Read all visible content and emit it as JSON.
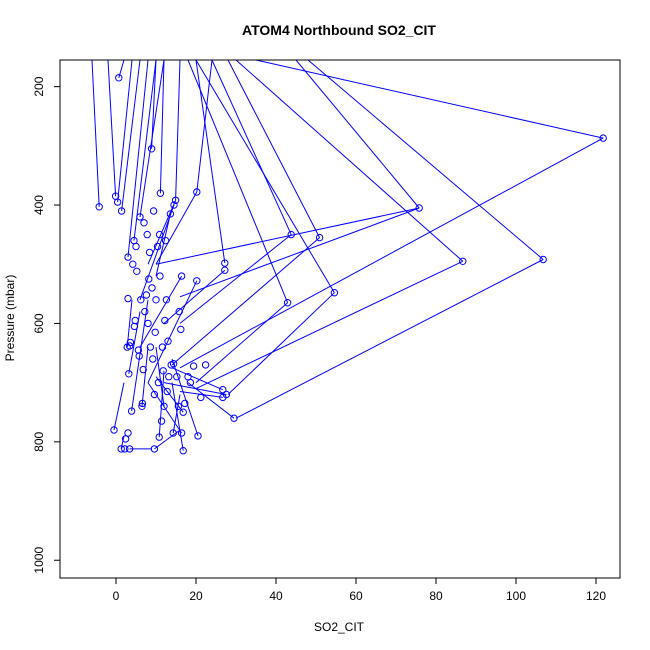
{
  "chart_data": {
    "type": "line",
    "title": "ATOM4 Northbound SO2_CIT",
    "xlabel": "SO2_CIT",
    "ylabel": "Pressure (mbar)",
    "xlim": [
      -14,
      126
    ],
    "ylim": [
      1030,
      155
    ],
    "y_reversed": true,
    "x_ticks": [
      0,
      20,
      40,
      60,
      80,
      100,
      120
    ],
    "y_ticks": [
      200,
      400,
      600,
      800,
      1000
    ],
    "grid": false,
    "series": [
      {
        "color": "#0000ff",
        "marker": "open-circle",
        "segments": [
          [
            [
              121.8,
              287
            ],
            [
              35,
              155
            ]
          ],
          [
            [
              121.8,
              287
            ],
            [
              16,
              675
            ]
          ],
          [
            [
              106.8,
              492
            ],
            [
              30,
              760
            ]
          ],
          [
            [
              106.8,
              492
            ],
            [
              48,
              155
            ]
          ],
          [
            [
              86.7,
              495
            ],
            [
              20,
              710
            ]
          ],
          [
            [
              86.7,
              495
            ],
            [
              30,
              155
            ]
          ],
          [
            [
              75.8,
              405
            ],
            [
              16,
              555
            ]
          ],
          [
            [
              75.8,
              405
            ],
            [
              45,
              155
            ]
          ],
          [
            [
              75.8,
              405
            ],
            [
              10,
              500
            ]
          ],
          [
            [
              54.6,
              548
            ],
            [
              28,
              720
            ]
          ],
          [
            [
              54.6,
              548
            ],
            [
              20,
              155
            ]
          ],
          [
            [
              50.9,
              455
            ],
            [
              14,
              670
            ]
          ],
          [
            [
              50.9,
              455
            ],
            [
              28,
              155
            ]
          ],
          [
            [
              43.8,
              450
            ],
            [
              16,
              600
            ]
          ],
          [
            [
              43.8,
              450
            ],
            [
              24,
              155
            ]
          ],
          [
            [
              42.9,
              565
            ],
            [
              20,
              700
            ]
          ],
          [
            [
              42.9,
              565
            ],
            [
              18,
              155
            ]
          ],
          [
            [
              29.5,
              760
            ],
            [
              18,
              700
            ]
          ],
          [
            [
              27.6,
              720
            ],
            [
              12,
              700
            ]
          ],
          [
            [
              26.7,
              725
            ],
            [
              16,
              715
            ]
          ],
          [
            [
              26.7,
              712
            ],
            [
              14,
              675
            ]
          ],
          [
            [
              27.2,
              498
            ],
            [
              20,
              155
            ]
          ],
          [
            [
              27.2,
              510
            ],
            [
              12,
              600
            ]
          ],
          [
            [
              20.5,
              790
            ],
            [
              14,
              660
            ]
          ],
          [
            [
              20.2,
              528
            ],
            [
              8,
              700
            ]
          ],
          [
            [
              20.2,
              378
            ],
            [
              10,
              500
            ]
          ],
          [
            [
              20.2,
              378
            ],
            [
              24,
              155
            ]
          ],
          [
            [
              16.8,
              815
            ],
            [
              14,
              700
            ]
          ],
          [
            [
              16.4,
              520
            ],
            [
              6,
              640
            ]
          ],
          [
            [
              16.4,
              785
            ],
            [
              8,
              700
            ]
          ],
          [
            [
              16.8,
              750
            ],
            [
              10,
              690
            ]
          ],
          [
            [
              14.9,
              392
            ],
            [
              8,
              500
            ]
          ],
          [
            [
              14.9,
              392
            ],
            [
              16,
              155
            ]
          ],
          [
            [
              14.5,
              400
            ],
            [
              6,
              560
            ]
          ],
          [
            [
              13.6,
              415
            ],
            [
              10,
              520
            ]
          ],
          [
            [
              -4.2,
              403
            ],
            [
              -6,
              155
            ]
          ],
          [
            [
              -0.1,
              385
            ],
            [
              -2,
              155
            ]
          ],
          [
            [
              0.4,
              395
            ],
            [
              4,
              155
            ]
          ],
          [
            [
              0.7,
              185
            ],
            [
              2,
              155
            ]
          ],
          [
            [
              1.4,
              410
            ],
            [
              6,
              155
            ]
          ],
          [
            [
              3.0,
              488
            ],
            [
              8,
              155
            ]
          ],
          [
            [
              4.5,
              460
            ],
            [
              10,
              155
            ]
          ],
          [
            [
              6.0,
              420
            ],
            [
              12,
              155
            ]
          ],
          [
            [
              8.9,
              305
            ],
            [
              10,
              155
            ]
          ],
          [
            [
              11.1,
              380
            ],
            [
              12,
              155
            ]
          ],
          [
            [
              3.9,
              748
            ],
            [
              8,
              560
            ]
          ],
          [
            [
              3.2,
              685
            ],
            [
              6,
              580
            ]
          ],
          [
            [
              2.8,
              640
            ],
            [
              4,
              560
            ]
          ],
          [
            [
              6.5,
              740
            ],
            [
              8,
              640
            ]
          ],
          [
            [
              10.8,
              792
            ],
            [
              12,
              680
            ]
          ],
          [
            [
              1.3,
              812
            ],
            [
              2,
              790
            ]
          ],
          [
            [
              -0.5,
              780
            ],
            [
              2,
              700
            ]
          ],
          [
            [
              3.4,
              812
            ],
            [
              9,
              812
            ]
          ],
          [
            [
              9.6,
              812
            ],
            [
              16,
              780
            ]
          ],
          [
            [
              12.0,
              740
            ],
            [
              10,
              640
            ]
          ],
          [
            [
              14.3,
              785
            ],
            [
              16,
              720
            ]
          ]
        ],
        "points": [
          [
            121.8,
            287
          ],
          [
            106.8,
            492
          ],
          [
            86.7,
            495
          ],
          [
            75.8,
            405
          ],
          [
            54.6,
            548
          ],
          [
            50.9,
            455
          ],
          [
            43.8,
            450
          ],
          [
            42.9,
            565
          ],
          [
            29.5,
            760
          ],
          [
            27.6,
            720
          ],
          [
            26.7,
            725
          ],
          [
            26.7,
            712
          ],
          [
            27.2,
            498
          ],
          [
            27.2,
            510
          ],
          [
            20.5,
            790
          ],
          [
            20.2,
            528
          ],
          [
            20.2,
            378
          ],
          [
            16.8,
            815
          ],
          [
            16.4,
            520
          ],
          [
            16.4,
            785
          ],
          [
            16.8,
            750
          ],
          [
            14.9,
            392
          ],
          [
            14.5,
            400
          ],
          [
            13.6,
            415
          ],
          [
            -4.2,
            403
          ],
          [
            -0.1,
            385
          ],
          [
            0.4,
            395
          ],
          [
            0.7,
            185
          ],
          [
            1.4,
            410
          ],
          [
            3.0,
            488
          ],
          [
            4.5,
            460
          ],
          [
            6.0,
            420
          ],
          [
            8.9,
            305
          ],
          [
            11.1,
            380
          ],
          [
            3.9,
            748
          ],
          [
            3.2,
            685
          ],
          [
            2.8,
            640
          ],
          [
            6.5,
            740
          ],
          [
            10.8,
            792
          ],
          [
            1.3,
            812
          ],
          [
            -0.5,
            780
          ],
          [
            3.4,
            812
          ],
          [
            9.6,
            812
          ],
          [
            12.0,
            740
          ],
          [
            14.3,
            785
          ],
          [
            2.4,
            795
          ],
          [
            3.0,
            785
          ],
          [
            2.2,
            812
          ],
          [
            3.0,
            558
          ],
          [
            3.6,
            632
          ],
          [
            4.6,
            605
          ],
          [
            5.2,
            512
          ],
          [
            5.6,
            645
          ],
          [
            6.8,
            678
          ],
          [
            7.2,
            580
          ],
          [
            7.6,
            552
          ],
          [
            8.2,
            525
          ],
          [
            8.6,
            640
          ],
          [
            9.2,
            660
          ],
          [
            9.8,
            615
          ],
          [
            10.4,
            470
          ],
          [
            10.9,
            450
          ],
          [
            11.6,
            640
          ],
          [
            12.2,
            595
          ],
          [
            12.6,
            560
          ],
          [
            13.2,
            690
          ],
          [
            13.8,
            670
          ],
          [
            14.4,
            668
          ],
          [
            15.2,
            690
          ],
          [
            15.8,
            580
          ],
          [
            16.2,
            610
          ],
          [
            17.2,
            735
          ],
          [
            18.0,
            690
          ],
          [
            18.6,
            700
          ],
          [
            19.4,
            672
          ],
          [
            21.2,
            725
          ],
          [
            22.4,
            670
          ],
          [
            5.0,
            470
          ],
          [
            6.2,
            560
          ],
          [
            7.0,
            430
          ],
          [
            7.8,
            450
          ],
          [
            8.4,
            480
          ],
          [
            9.0,
            540
          ],
          [
            9.4,
            410
          ],
          [
            10.0,
            560
          ],
          [
            11.0,
            520
          ],
          [
            11.8,
            680
          ],
          [
            12.4,
            460
          ],
          [
            13.0,
            630
          ],
          [
            4.2,
            500
          ],
          [
            5.8,
            655
          ],
          [
            6.6,
            735
          ],
          [
            8.0,
            600
          ],
          [
            9.6,
            720
          ],
          [
            10.6,
            700
          ],
          [
            11.4,
            765
          ],
          [
            12.8,
            715
          ],
          [
            15.6,
            740
          ],
          [
            3.4,
            638
          ],
          [
            4.8,
            595
          ]
        ]
      }
    ]
  }
}
